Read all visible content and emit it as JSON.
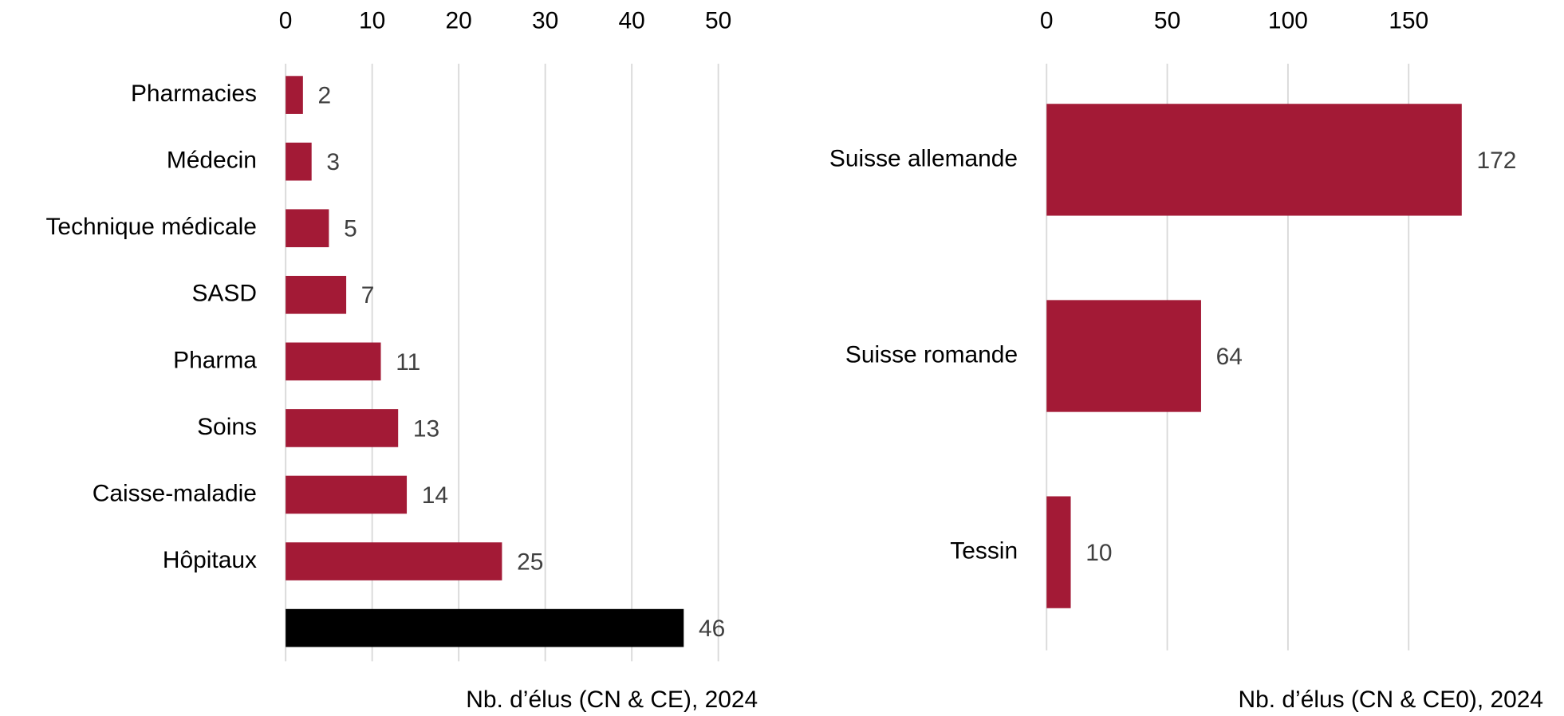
{
  "chart_data": [
    {
      "type": "bar",
      "orientation": "horizontal",
      "categories": [
        "Pharmacies",
        "Médecin",
        "Technique médicale",
        "SASD",
        "Pharma",
        "Soins",
        "Caisse-maladie",
        "Hôpitaux",
        null
      ],
      "values": [
        2,
        3,
        5,
        7,
        11,
        13,
        14,
        25,
        46
      ],
      "colors": [
        "#a31a36",
        "#a31a36",
        "#a31a36",
        "#a31a36",
        "#a31a36",
        "#a31a36",
        "#a31a36",
        "#a31a36",
        "#000000"
      ],
      "xlim": [
        0,
        50
      ],
      "xticks": [
        0,
        10,
        20,
        30,
        40,
        50
      ],
      "grid": true,
      "x_label": "Nb. d’élus (CN & CE), 2024"
    },
    {
      "type": "bar",
      "orientation": "horizontal",
      "categories": [
        "Suisse allemande",
        "Suisse romande",
        "Tessin"
      ],
      "values": [
        172,
        64,
        10
      ],
      "color": "#a31a36",
      "xlim": [
        0,
        200
      ],
      "xticks": [
        0,
        50,
        100,
        150
      ],
      "grid": true,
      "x_label": "Nb. d’élus (CN & CE0), 2024"
    }
  ]
}
